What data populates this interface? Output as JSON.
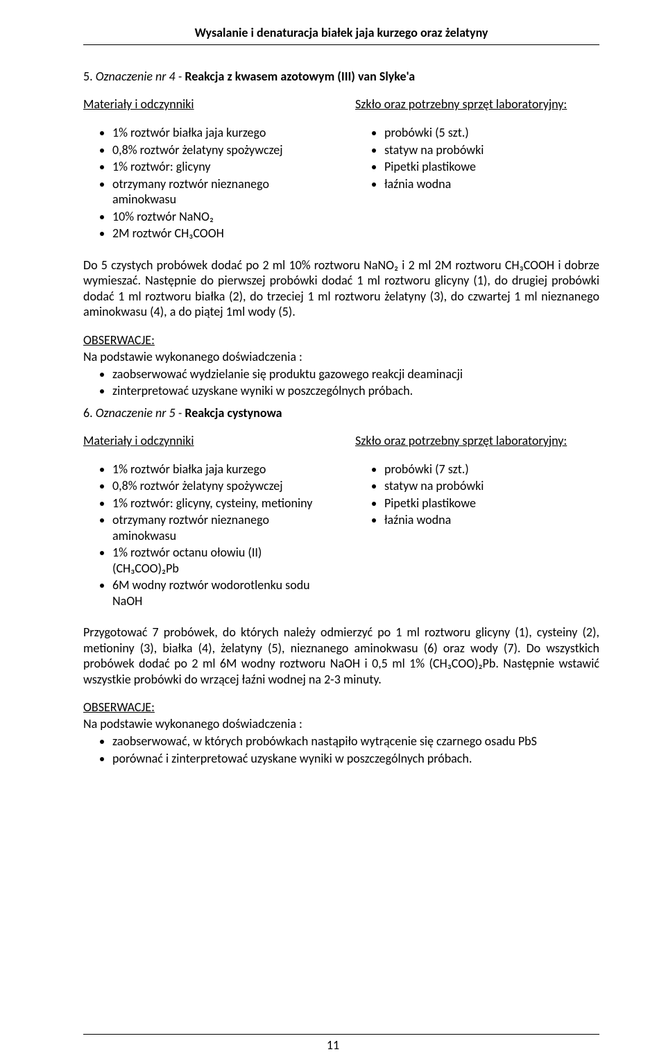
{
  "runningHead": "Wysalanie i denaturacja białek jaja kurzego oraz żelatyny",
  "section5": {
    "number": "5.",
    "label": "Oznaczenie nr 4 -",
    "boldTitle": "Reakcja z kwasem azotowym (III) van Slyke'a",
    "materialsHeading": "Materiały i odczynniki",
    "equipmentHeading": "Szkło oraz potrzebny sprzęt laboratoryjny:",
    "materials": [
      "1% roztwór białka jaja kurzego",
      "0,8% roztwór żelatyny spożywczej",
      "1% roztwór: glicyny",
      "otrzymany roztwór nieznanego aminokwasu",
      "10% roztwór NaNO₂",
      "2M roztwór CH₃COOH"
    ],
    "equipment": [
      "probówki (5 szt.)",
      "statyw na probówki",
      "Pipetki plastikowe",
      "łaźnia wodna"
    ],
    "body": "Do 5 czystych probówek dodać po 2 ml 10% roztworu NaNO₂ i 2 ml 2M roztworu CH₃COOH i dobrze wymieszać. Następnie do pierwszej probówki dodać 1 ml roztworu glicyny (1), do drugiej probówki dodać 1 ml roztworu białka (2), do trzeciej 1 ml roztworu żelatyny (3), do czwartej 1 ml nieznanego aminokwasu (4), a do piątej 1ml wody (5).",
    "obsLabel": "OBSERWACJE:",
    "obsIntro": "Na podstawie wykonanego doświadczenia :",
    "obsItems": [
      "zaobserwować wydzielanie się produktu gazowego reakcji deaminacji",
      "zinterpretować uzyskane wyniki w poszczególnych próbach."
    ]
  },
  "section6": {
    "number": "6.",
    "label": "Oznaczenie nr 5 -",
    "boldTitle": "Reakcja cystynowa",
    "materialsHeading": "Materiały i odczynniki",
    "equipmentHeading": "Szkło oraz potrzebny sprzęt laboratoryjny:",
    "materials": [
      "1% roztwór białka jaja kurzego",
      "0,8% roztwór żelatyny spożywczej",
      "1% roztwór: glicyny, cysteiny, metioniny",
      "otrzymany roztwór nieznanego aminokwasu",
      "1% roztwór octanu ołowiu (II) (CH₃COO)₂Pb",
      "6M wodny roztwór wodorotlenku sodu NaOH"
    ],
    "equipment": [
      "probówki (7 szt.)",
      "statyw na probówki",
      "Pipetki plastikowe",
      "łaźnia wodna"
    ],
    "body": "Przygotować 7 probówek, do których należy odmierzyć po 1 ml roztworu glicyny (1), cysteiny (2), metioniny (3), białka (4), żelatyny (5), nieznanego aminokwasu (6) oraz wody (7). Do wszystkich probówek dodać po 2 ml 6M wodny roztworu NaOH i 0,5 ml 1% (CH₃COO)₂Pb. Następnie wstawić wszystkie probówki do wrzącej łaźni wodnej na 2-3 minuty.",
    "obsLabel": "OBSERWACJE:",
    "obsIntro": "Na podstawie wykonanego doświadczenia :",
    "obsItems": [
      "zaobserwować, w których probówkach nastąpiło wytrącenie się czarnego osadu PbS",
      "porównać i zinterpretować uzyskane wyniki w poszczególnych próbach."
    ]
  },
  "pageNumber": "11"
}
